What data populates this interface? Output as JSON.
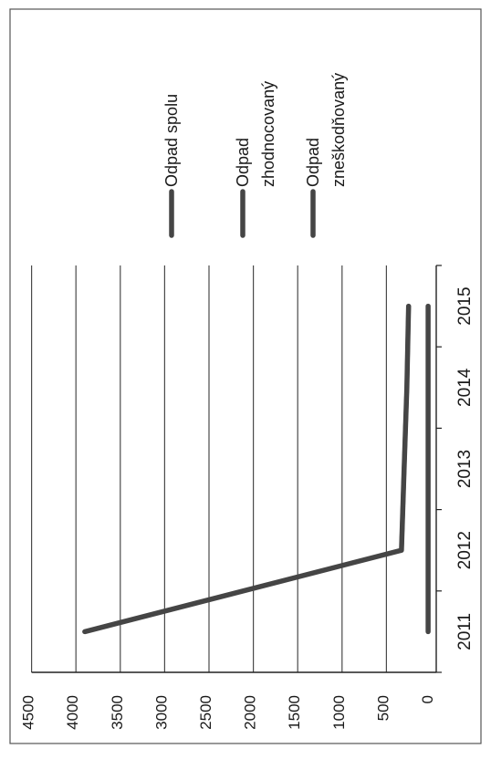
{
  "chart_data": {
    "type": "line",
    "orientation": "rotated-90-clockwise",
    "categories": [
      "2011",
      "2012",
      "2013",
      "2014",
      "2015"
    ],
    "series": [
      {
        "name": "Odpad spolu",
        "values": [
          3900,
          330,
          300,
          270,
          250
        ]
      },
      {
        "name": "Odpad zhodnocovaný",
        "values": [
          null,
          330,
          300,
          270,
          250
        ]
      },
      {
        "name": "Odpad zneškodňovaný",
        "values": [
          30,
          30,
          30,
          30,
          30
        ]
      }
    ],
    "y_ticks": [
      "0",
      "500",
      "1000",
      "1500",
      "2000",
      "2500",
      "3000",
      "3500",
      "4000",
      "4500"
    ],
    "ylim": [
      0,
      4500
    ],
    "grid": true,
    "legend_position": "right",
    "title": "",
    "xlabel": "",
    "ylabel": ""
  },
  "colors": {
    "series_line": "#454545",
    "grid": "#4a4a4a",
    "frame": "#555555",
    "axis": "#222222"
  }
}
